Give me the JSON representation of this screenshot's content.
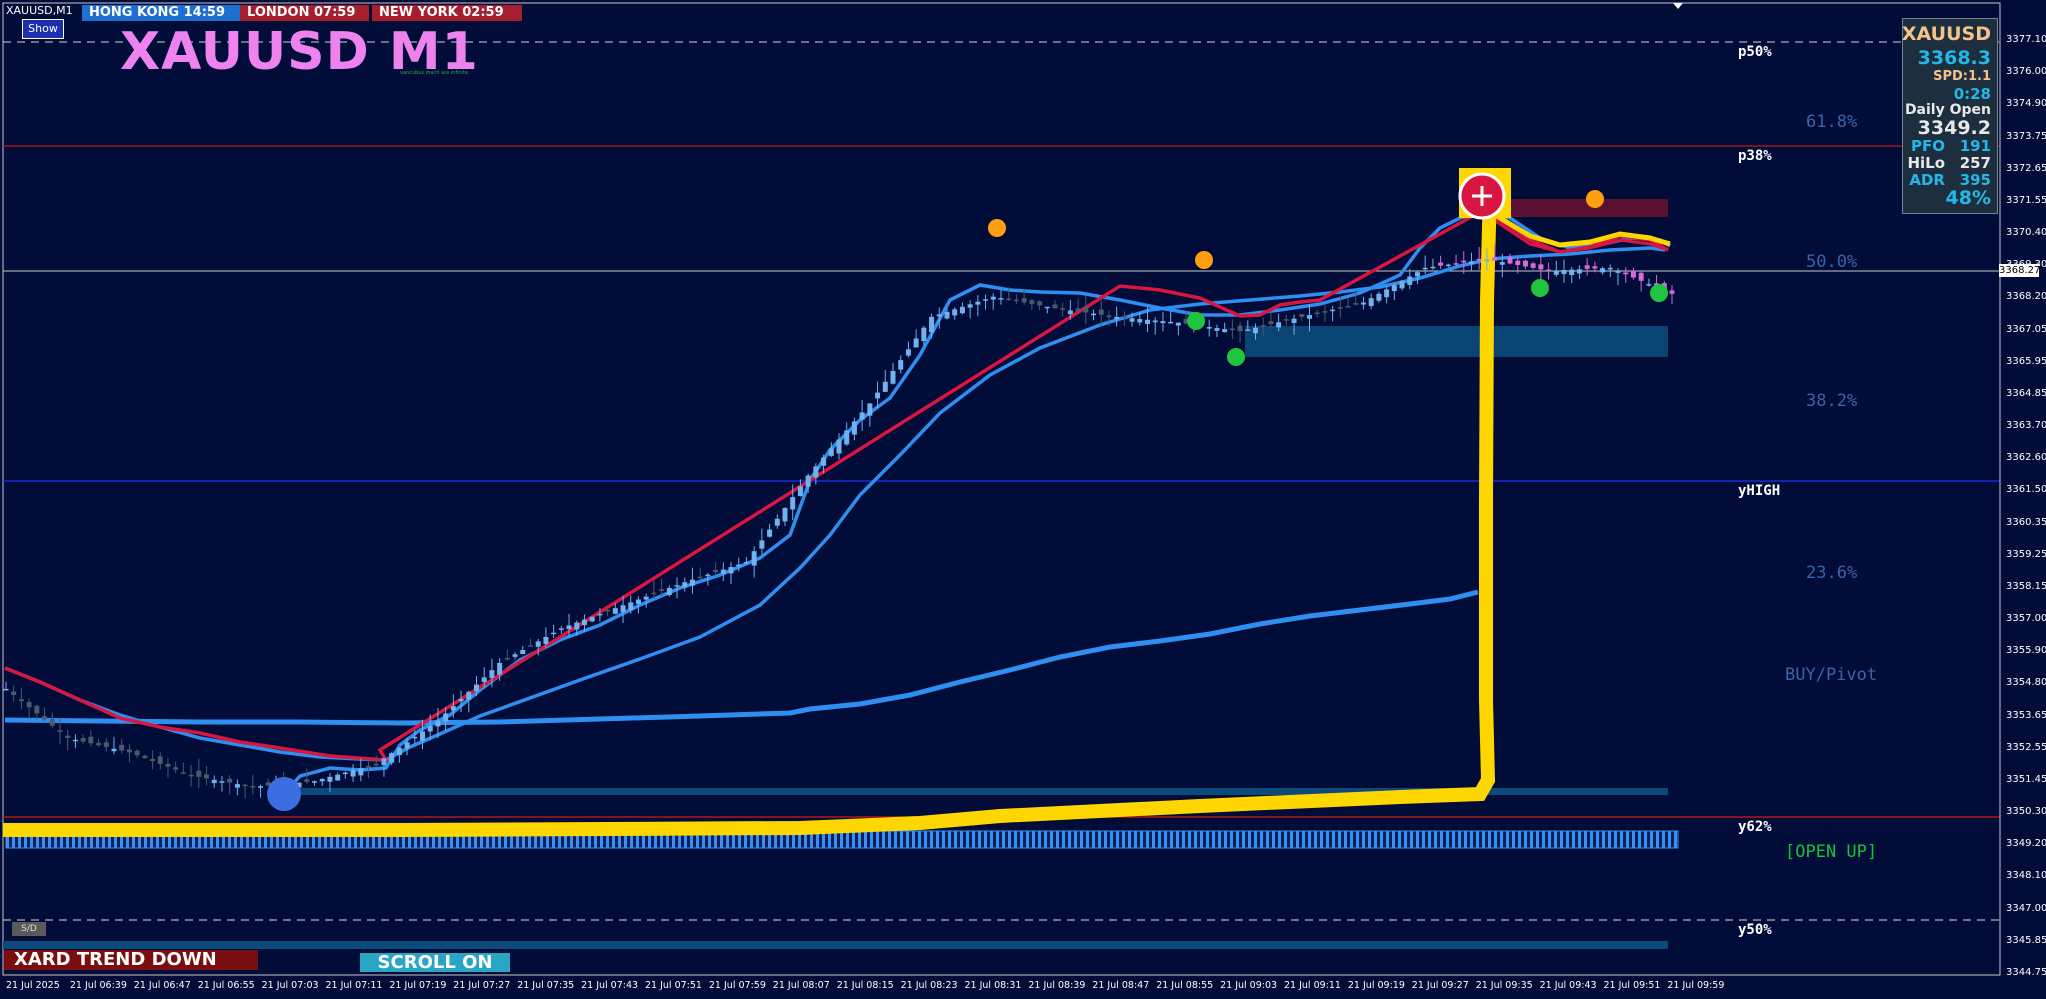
{
  "header": {
    "symbol_label": "XAUUSD,M1",
    "show_button": "Show",
    "sessions": [
      {
        "label": "HONG KONG 14:59",
        "color": "#1f6fd1"
      },
      {
        "label": "LONDON  07:59",
        "color": "#a71e2e"
      },
      {
        "label": "NEW YORK  02:59",
        "color": "#a71e2e"
      }
    ],
    "title": "XAUUSD M1",
    "tiny_note": "vancubus mach are infinite"
  },
  "info_panel": {
    "symbol": "XAUUSD",
    "price": "3368.3",
    "spread": "SPD:1.1",
    "timer": "0:28",
    "daily_open_label": "Daily Open",
    "daily_open": "3349.2",
    "pfo_label": "PFO",
    "pfo": "191",
    "hilo_label": "HiLo",
    "hilo": "257",
    "adr_label": "ADR",
    "adr": "395",
    "pct": "48%"
  },
  "levels": {
    "p50": "p50%",
    "p38": "p38%",
    "yhigh": "yHIGH",
    "y62": "y62%",
    "y50": "y50%",
    "fib618": "61.8%",
    "fib50": "50.0%",
    "fib382": "38.2%",
    "fib236": "23.6%",
    "buy_pivot": "BUY/Pivot",
    "open_up": "[OPEN UP]"
  },
  "bottom": {
    "trend": "XARD TREND DOWN",
    "scroll": "SCROLL ON",
    "sd": "S/D"
  },
  "current_price_tag": "3368.27",
  "colors": {
    "background": "#010c38",
    "candle": "#6fb2ee",
    "ma_fast": "#2e8ff0",
    "ma_red": "#d8163f",
    "yellow_line": "#ffd700",
    "title": "#ee82ee",
    "fib_text": "#3a64a6"
  },
  "chart_data": {
    "type": "line",
    "title": "XAUUSD M1",
    "y_ticks": [
      "3377.10",
      "3376.00",
      "3374.90",
      "3373.75",
      "3372.65",
      "3371.55",
      "3370.40",
      "3369.30",
      "3368.20",
      "3367.05",
      "3365.95",
      "3364.85",
      "3363.70",
      "3362.60",
      "3361.50",
      "3360.35",
      "3359.25",
      "3358.15",
      "3357.00",
      "3355.90",
      "3354.80",
      "3353.65",
      "3352.55",
      "3351.45",
      "3350.30",
      "3349.20",
      "3348.10",
      "3347.00",
      "3345.85",
      "3344.75"
    ],
    "ylim": [
      3344.75,
      3377.1
    ],
    "x_ticks": [
      "21 Jul 2025",
      "21 Jul 06:39",
      "21 Jul 06:47",
      "21 Jul 06:55",
      "21 Jul 07:03",
      "21 Jul 07:11",
      "21 Jul 07:19",
      "21 Jul 07:27",
      "21 Jul 07:35",
      "21 Jul 07:43",
      "21 Jul 07:51",
      "21 Jul 07:59",
      "21 Jul 08:07",
      "21 Jul 08:15",
      "21 Jul 08:23",
      "21 Jul 08:31",
      "21 Jul 08:39",
      "21 Jul 08:47",
      "21 Jul 08:55",
      "21 Jul 09:03",
      "21 Jul 09:11",
      "21 Jul 09:19",
      "21 Jul 09:27",
      "21 Jul 09:35",
      "21 Jul 09:43",
      "21 Jul 09:51",
      "21 Jul 09:59"
    ],
    "price_series_approx": [
      [
        0,
        3354.6
      ],
      [
        8,
        3352.9
      ],
      [
        16,
        3352.4
      ],
      [
        24,
        3351.6
      ],
      [
        32,
        3351.2
      ],
      [
        40,
        3351.4
      ],
      [
        48,
        3352.0
      ],
      [
        56,
        3353.5
      ],
      [
        64,
        3355.5
      ],
      [
        72,
        3356.7
      ],
      [
        80,
        3357.5
      ],
      [
        88,
        3358.3
      ],
      [
        96,
        3359.0
      ],
      [
        104,
        3362.0
      ],
      [
        112,
        3364.5
      ],
      [
        120,
        3367.5
      ],
      [
        128,
        3368.2
      ],
      [
        136,
        3367.8
      ],
      [
        144,
        3367.5
      ],
      [
        152,
        3367.3
      ],
      [
        160,
        3367.0
      ],
      [
        168,
        3367.5
      ],
      [
        176,
        3368.0
      ],
      [
        184,
        3369.2
      ],
      [
        192,
        3369.5
      ],
      [
        200,
        3369.1
      ],
      [
        208,
        3369.2
      ],
      [
        216,
        3368.3
      ]
    ],
    "hlines": {
      "p50": 3376.0,
      "fib618": 3372.7,
      "current": 3368.27,
      "yhigh": 3361.2,
      "daily_open": 3349.2,
      "y50": 3346.2
    }
  }
}
